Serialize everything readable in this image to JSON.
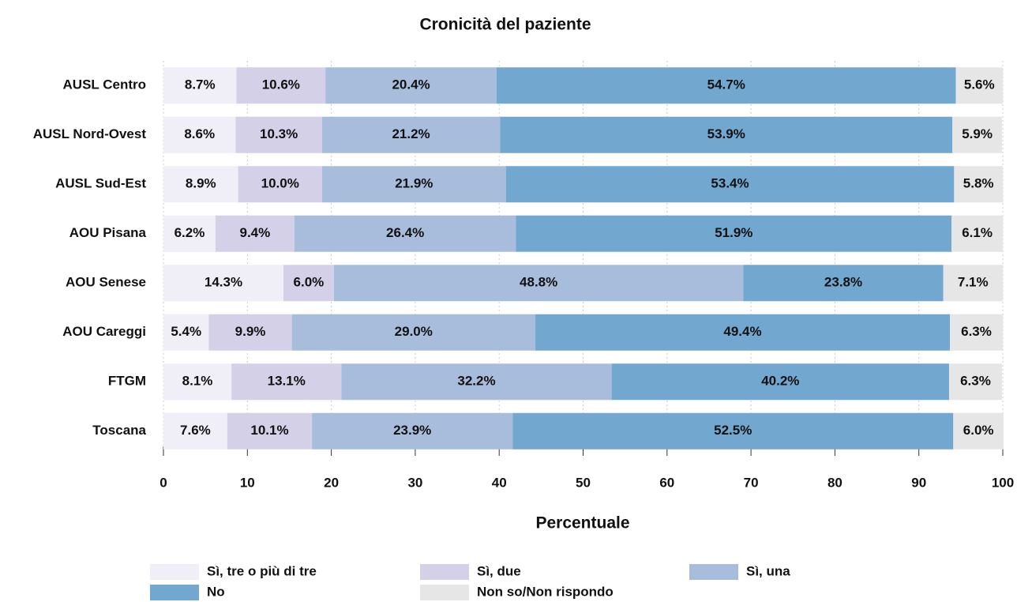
{
  "chart_data": {
    "type": "stacked-barh",
    "title": "Cronicità del paziente",
    "x_label": "Percentuale",
    "categories": [
      "AUSL Centro",
      "AUSL Nord-Ovest",
      "AUSL Sud-Est",
      "AOU Pisana",
      "AOU Senese",
      "AOU Careggi",
      "FTGM",
      "Toscana"
    ],
    "series": [
      {
        "name": "Sì, tre o più di tre",
        "color": "#f0eef6",
        "values": [
          8.7,
          8.6,
          8.9,
          6.2,
          14.3,
          5.4,
          8.1,
          7.6
        ],
        "value_labels": [
          "8.7%",
          "8.6%",
          "8.9%",
          "6.2%",
          "14.3%",
          "5.4%",
          "8.1%",
          "7.6%"
        ]
      },
      {
        "name": "Sì, due",
        "color": "#d3d0e8",
        "values": [
          10.6,
          10.3,
          10.0,
          9.4,
          6.0,
          9.9,
          13.1,
          10.1
        ],
        "value_labels": [
          "10.6%",
          "10.3%",
          "10.0%",
          "9.4%",
          "6.0%",
          "9.9%",
          "13.1%",
          "10.1%"
        ]
      },
      {
        "name": "Sì, una",
        "color": "#a8bddc",
        "values": [
          20.4,
          21.2,
          21.9,
          26.4,
          48.8,
          29.0,
          32.2,
          23.9
        ],
        "value_labels": [
          "20.4%",
          "21.2%",
          "21.9%",
          "26.4%",
          "48.8%",
          "29.0%",
          "32.2%",
          "23.9%"
        ]
      },
      {
        "name": "No",
        "color": "#72a8d0",
        "values": [
          54.7,
          53.9,
          53.4,
          51.9,
          23.8,
          49.4,
          40.2,
          52.5
        ],
        "value_labels": [
          "54.7%",
          "53.9%",
          "53.4%",
          "51.9%",
          "23.8%",
          "49.4%",
          "40.2%",
          "52.5%"
        ]
      },
      {
        "name": "Non so/Non rispondo",
        "color": "#e6e6e6",
        "values": [
          5.6,
          5.9,
          5.8,
          6.1,
          7.1,
          6.3,
          6.3,
          6.0
        ],
        "value_labels": [
          "5.6%",
          "5.9%",
          "5.8%",
          "6.1%",
          "7.1%",
          "6.3%",
          "6.3%",
          "6.0%"
        ]
      }
    ],
    "xlim": [
      0,
      100
    ],
    "xticks": [
      0,
      10,
      20,
      30,
      40,
      50,
      60,
      70,
      80,
      90,
      100
    ],
    "grid": true
  }
}
